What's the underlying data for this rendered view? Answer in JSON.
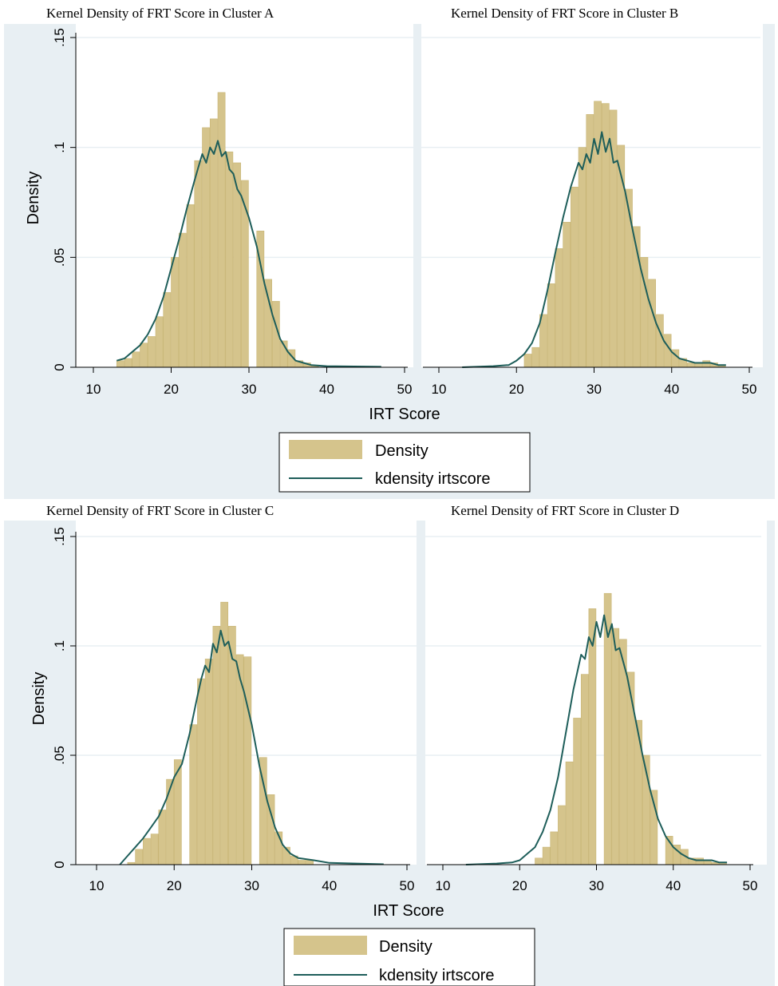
{
  "colors": {
    "background": "#ffffff",
    "outer_band": "#e8eff3",
    "grid": "#e8eff3",
    "bar_fill": "#d5c48c",
    "bar_stroke": "#c8b575",
    "kde_line": "#1e5e5a"
  },
  "legend": {
    "density_label": "Density",
    "kdensity_label": "kdensity irtscore",
    "placement": "bottom-center"
  },
  "axes": {
    "xlabel": "IRT Score",
    "ylabel": "Density",
    "x_ticks": [
      10,
      20,
      30,
      40,
      50
    ],
    "y_ticks": [
      0,
      0.05,
      0.1,
      0.15
    ],
    "y_tick_labels": [
      "0",
      ".05",
      ".1",
      ".15"
    ],
    "xlim": [
      10,
      50
    ],
    "ylim": [
      0,
      0.15
    ],
    "grid": true
  },
  "chart_data": [
    {
      "type": "bar",
      "title": "Kernel Density of FRT Score in Cluster A",
      "bin_width": 1,
      "bins": [
        {
          "x": 13,
          "y": 0.003
        },
        {
          "x": 14,
          "y": 0.004
        },
        {
          "x": 15,
          "y": 0.007
        },
        {
          "x": 16,
          "y": 0.011
        },
        {
          "x": 17,
          "y": 0.014
        },
        {
          "x": 18,
          "y": 0.023
        },
        {
          "x": 19,
          "y": 0.034
        },
        {
          "x": 20,
          "y": 0.05
        },
        {
          "x": 21,
          "y": 0.061
        },
        {
          "x": 22,
          "y": 0.074
        },
        {
          "x": 23,
          "y": 0.094
        },
        {
          "x": 24,
          "y": 0.109
        },
        {
          "x": 25,
          "y": 0.113
        },
        {
          "x": 26,
          "y": 0.125
        },
        {
          "x": 27,
          "y": 0.098
        },
        {
          "x": 28,
          "y": 0.093
        },
        {
          "x": 29,
          "y": 0.085
        },
        {
          "x": 31,
          "y": 0.062
        },
        {
          "x": 32,
          "y": 0.04
        },
        {
          "x": 33,
          "y": 0.03
        },
        {
          "x": 34,
          "y": 0.012
        },
        {
          "x": 35,
          "y": 0.008
        },
        {
          "x": 36,
          "y": 0.003
        },
        {
          "x": 37,
          "y": 0.002
        },
        {
          "x": 38,
          "y": 0.001
        }
      ],
      "kde": [
        [
          13,
          0.003
        ],
        [
          14,
          0.004
        ],
        [
          15,
          0.007
        ],
        [
          16,
          0.01
        ],
        [
          17,
          0.015
        ],
        [
          18,
          0.022
        ],
        [
          19,
          0.032
        ],
        [
          20,
          0.045
        ],
        [
          21,
          0.058
        ],
        [
          22,
          0.072
        ],
        [
          23,
          0.085
        ],
        [
          23.5,
          0.091
        ],
        [
          24,
          0.097
        ],
        [
          24.5,
          0.093
        ],
        [
          25,
          0.1
        ],
        [
          25.5,
          0.097
        ],
        [
          26,
          0.103
        ],
        [
          26.5,
          0.096
        ],
        [
          27,
          0.098
        ],
        [
          27.5,
          0.09
        ],
        [
          28,
          0.088
        ],
        [
          28.5,
          0.081
        ],
        [
          29,
          0.078
        ],
        [
          30,
          0.068
        ],
        [
          31,
          0.055
        ],
        [
          32,
          0.038
        ],
        [
          33,
          0.024
        ],
        [
          34,
          0.013
        ],
        [
          35,
          0.007
        ],
        [
          36,
          0.003
        ],
        [
          37,
          0.002
        ],
        [
          38,
          0.001
        ],
        [
          40,
          0.0005
        ],
        [
          47,
          0.0002
        ]
      ]
    },
    {
      "type": "bar",
      "title": "Kernel Density of FRT Score in Cluster B",
      "bin_width": 1,
      "bins": [
        {
          "x": 21,
          "y": 0.006
        },
        {
          "x": 22,
          "y": 0.009
        },
        {
          "x": 23,
          "y": 0.024
        },
        {
          "x": 24,
          "y": 0.038
        },
        {
          "x": 25,
          "y": 0.054
        },
        {
          "x": 26,
          "y": 0.066
        },
        {
          "x": 27,
          "y": 0.082
        },
        {
          "x": 28,
          "y": 0.1
        },
        {
          "x": 29,
          "y": 0.115
        },
        {
          "x": 30,
          "y": 0.121
        },
        {
          "x": 31,
          "y": 0.12
        },
        {
          "x": 32,
          "y": 0.117
        },
        {
          "x": 33,
          "y": 0.101
        },
        {
          "x": 34,
          "y": 0.081
        },
        {
          "x": 35,
          "y": 0.064
        },
        {
          "x": 36,
          "y": 0.05
        },
        {
          "x": 37,
          "y": 0.04
        },
        {
          "x": 38,
          "y": 0.024
        },
        {
          "x": 39,
          "y": 0.015
        },
        {
          "x": 40,
          "y": 0.008
        },
        {
          "x": 41,
          "y": 0.004
        },
        {
          "x": 42,
          "y": 0.002
        },
        {
          "x": 43,
          "y": 0.002
        },
        {
          "x": 44,
          "y": 0.003
        },
        {
          "x": 45,
          "y": 0.002
        },
        {
          "x": 46,
          "y": 0.001
        }
      ],
      "kde": [
        [
          13,
          0.0
        ],
        [
          17,
          0.0005
        ],
        [
          19,
          0.001
        ],
        [
          20,
          0.003
        ],
        [
          21,
          0.006
        ],
        [
          22,
          0.011
        ],
        [
          23,
          0.02
        ],
        [
          24,
          0.035
        ],
        [
          25,
          0.052
        ],
        [
          26,
          0.068
        ],
        [
          27,
          0.082
        ],
        [
          28,
          0.093
        ],
        [
          28.5,
          0.09
        ],
        [
          29,
          0.097
        ],
        [
          29.5,
          0.093
        ],
        [
          30,
          0.104
        ],
        [
          30.5,
          0.097
        ],
        [
          31,
          0.107
        ],
        [
          31.5,
          0.098
        ],
        [
          32,
          0.104
        ],
        [
          32.5,
          0.093
        ],
        [
          33,
          0.094
        ],
        [
          34,
          0.08
        ],
        [
          35,
          0.062
        ],
        [
          36,
          0.045
        ],
        [
          37,
          0.031
        ],
        [
          38,
          0.02
        ],
        [
          39,
          0.012
        ],
        [
          40,
          0.007
        ],
        [
          41,
          0.004
        ],
        [
          42,
          0.003
        ],
        [
          43,
          0.002
        ],
        [
          44,
          0.002
        ],
        [
          45,
          0.002
        ],
        [
          46,
          0.001
        ],
        [
          47,
          0.001
        ]
      ]
    },
    {
      "type": "bar",
      "title": "Kernel Density of FRT Score in Cluster C",
      "bin_width": 1,
      "bins": [
        {
          "x": 14,
          "y": 0.001
        },
        {
          "x": 15,
          "y": 0.007
        },
        {
          "x": 16,
          "y": 0.012
        },
        {
          "x": 17,
          "y": 0.014
        },
        {
          "x": 18,
          "y": 0.025
        },
        {
          "x": 19,
          "y": 0.039
        },
        {
          "x": 20,
          "y": 0.048
        },
        {
          "x": 22,
          "y": 0.064
        },
        {
          "x": 23,
          "y": 0.085
        },
        {
          "x": 24,
          "y": 0.094
        },
        {
          "x": 25,
          "y": 0.109
        },
        {
          "x": 26,
          "y": 0.12
        },
        {
          "x": 27,
          "y": 0.109
        },
        {
          "x": 28,
          "y": 0.096
        },
        {
          "x": 29,
          "y": 0.095
        },
        {
          "x": 31,
          "y": 0.049
        },
        {
          "x": 32,
          "y": 0.032
        },
        {
          "x": 33,
          "y": 0.015
        },
        {
          "x": 34,
          "y": 0.008
        },
        {
          "x": 35,
          "y": 0.004
        },
        {
          "x": 36,
          "y": 0.002
        },
        {
          "x": 37,
          "y": 0.002
        }
      ],
      "kde": [
        [
          13,
          0.0
        ],
        [
          14,
          0.004
        ],
        [
          15,
          0.008
        ],
        [
          16,
          0.012
        ],
        [
          17,
          0.017
        ],
        [
          18,
          0.022
        ],
        [
          19,
          0.03
        ],
        [
          20,
          0.04
        ],
        [
          21,
          0.046
        ],
        [
          22,
          0.06
        ],
        [
          23,
          0.077
        ],
        [
          23.5,
          0.085
        ],
        [
          24,
          0.091
        ],
        [
          24.5,
          0.088
        ],
        [
          25,
          0.101
        ],
        [
          25.5,
          0.097
        ],
        [
          26,
          0.107
        ],
        [
          26.5,
          0.1
        ],
        [
          27,
          0.102
        ],
        [
          27.5,
          0.094
        ],
        [
          28,
          0.093
        ],
        [
          28.5,
          0.085
        ],
        [
          29,
          0.079
        ],
        [
          30,
          0.064
        ],
        [
          31,
          0.045
        ],
        [
          32,
          0.029
        ],
        [
          33,
          0.017
        ],
        [
          34,
          0.009
        ],
        [
          35,
          0.005
        ],
        [
          36,
          0.003
        ],
        [
          38,
          0.002
        ],
        [
          40,
          0.0008
        ],
        [
          47,
          0.0002
        ]
      ]
    },
    {
      "type": "bar",
      "title": "Kernel Density of FRT Score in Cluster D",
      "bin_width": 1,
      "bins": [
        {
          "x": 22,
          "y": 0.003
        },
        {
          "x": 23,
          "y": 0.008
        },
        {
          "x": 24,
          "y": 0.015
        },
        {
          "x": 25,
          "y": 0.027
        },
        {
          "x": 26,
          "y": 0.047
        },
        {
          "x": 27,
          "y": 0.067
        },
        {
          "x": 28,
          "y": 0.087
        },
        {
          "x": 29,
          "y": 0.117
        },
        {
          "x": 31,
          "y": 0.124
        },
        {
          "x": 32,
          "y": 0.108
        },
        {
          "x": 33,
          "y": 0.103
        },
        {
          "x": 34,
          "y": 0.088
        },
        {
          "x": 35,
          "y": 0.066
        },
        {
          "x": 36,
          "y": 0.05
        },
        {
          "x": 37,
          "y": 0.034
        },
        {
          "x": 39,
          "y": 0.013
        },
        {
          "x": 40,
          "y": 0.009
        },
        {
          "x": 41,
          "y": 0.007
        },
        {
          "x": 42,
          "y": 0.003
        },
        {
          "x": 43,
          "y": 0.003
        },
        {
          "x": 44,
          "y": 0.002
        },
        {
          "x": 45,
          "y": 0.001
        },
        {
          "x": 46,
          "y": 0.001
        }
      ],
      "kde": [
        [
          13,
          0.0
        ],
        [
          17,
          0.0005
        ],
        [
          19,
          0.001
        ],
        [
          20,
          0.002
        ],
        [
          21,
          0.005
        ],
        [
          22,
          0.008
        ],
        [
          23,
          0.015
        ],
        [
          24,
          0.025
        ],
        [
          25,
          0.04
        ],
        [
          26,
          0.06
        ],
        [
          27,
          0.08
        ],
        [
          28,
          0.096
        ],
        [
          28.5,
          0.094
        ],
        [
          29,
          0.104
        ],
        [
          29.5,
          0.1
        ],
        [
          30,
          0.111
        ],
        [
          30.5,
          0.104
        ],
        [
          31,
          0.114
        ],
        [
          31.5,
          0.104
        ],
        [
          32,
          0.11
        ],
        [
          32.5,
          0.098
        ],
        [
          33,
          0.099
        ],
        [
          34,
          0.086
        ],
        [
          35,
          0.068
        ],
        [
          36,
          0.05
        ],
        [
          37,
          0.034
        ],
        [
          38,
          0.021
        ],
        [
          39,
          0.013
        ],
        [
          40,
          0.008
        ],
        [
          41,
          0.005
        ],
        [
          42,
          0.003
        ],
        [
          43,
          0.002
        ],
        [
          44,
          0.002
        ],
        [
          45,
          0.002
        ],
        [
          46,
          0.001
        ],
        [
          47,
          0.001
        ]
      ]
    }
  ]
}
